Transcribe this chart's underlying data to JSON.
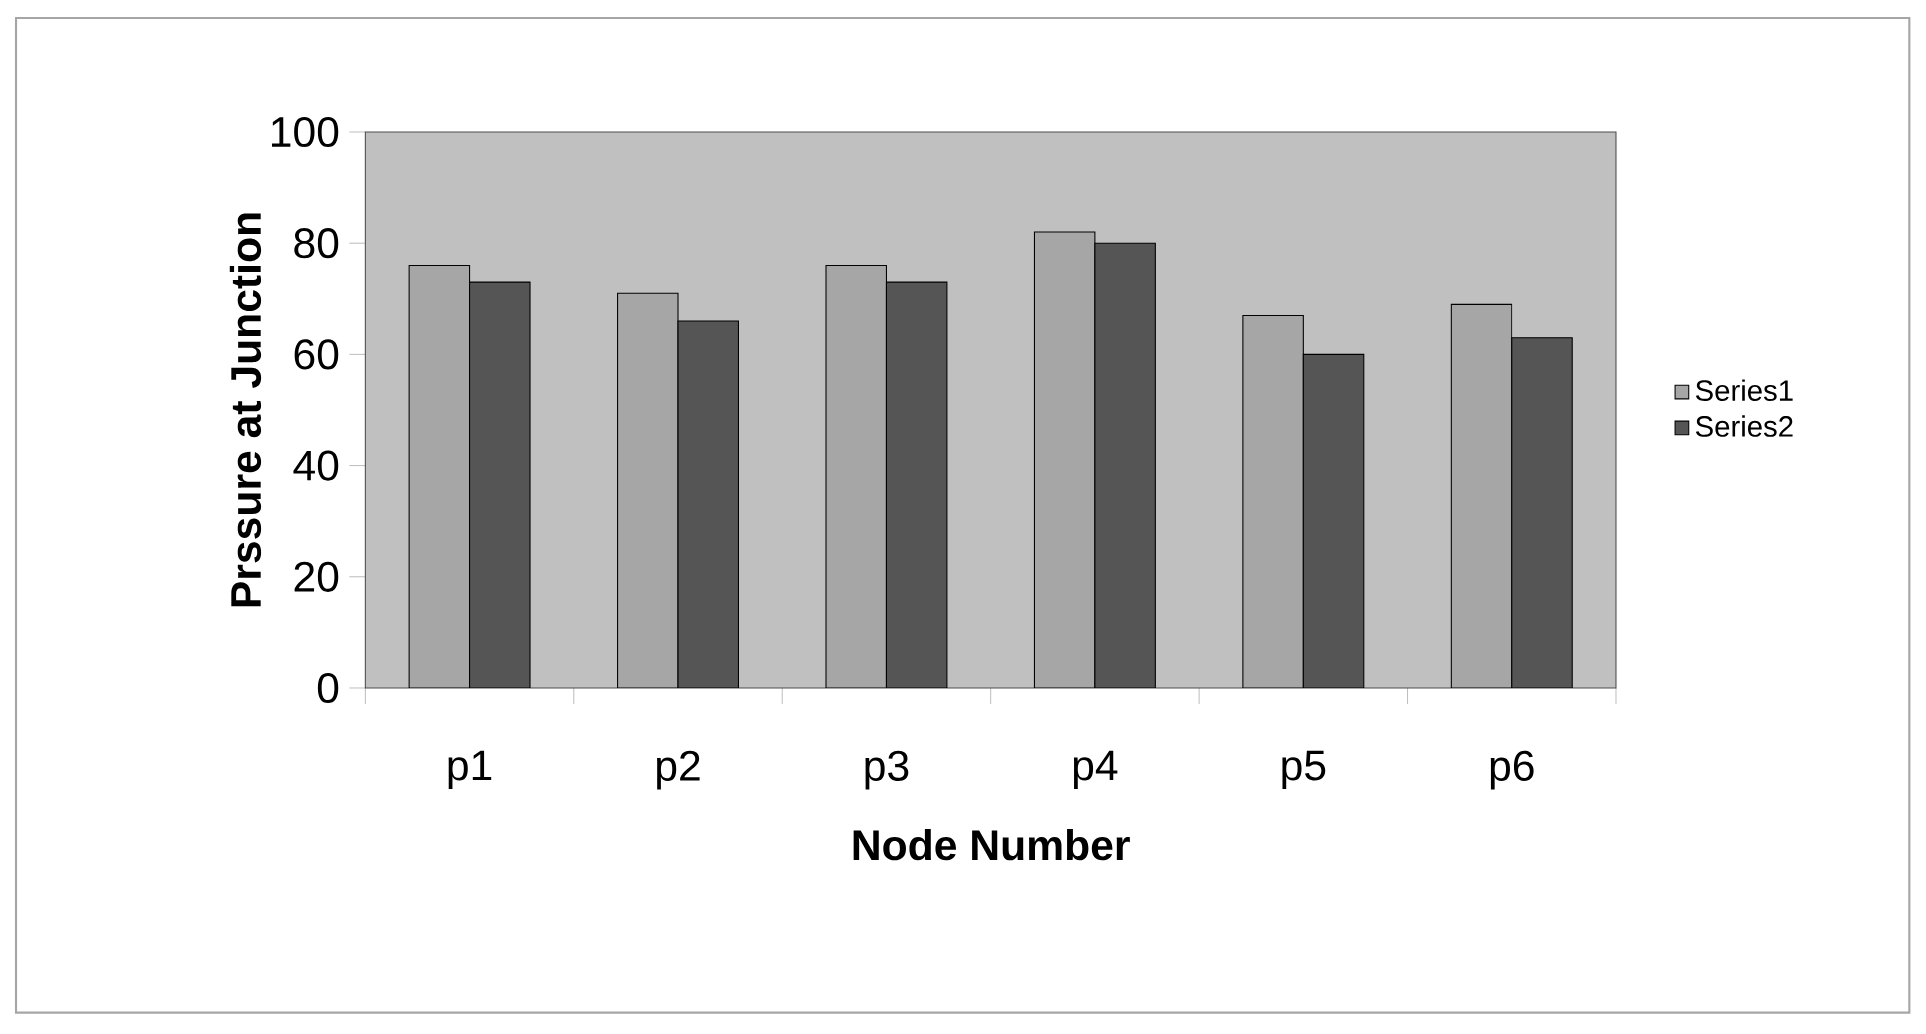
{
  "chart_data": {
    "type": "bar",
    "xlabel": "Node Number",
    "ylabel": "Prssure at Junction",
    "categories": [
      "p1",
      "p2",
      "p3",
      "p4",
      "p5",
      "p6"
    ],
    "series": [
      {
        "name": "Series1",
        "color": "#a6a6a6",
        "values": [
          76,
          71,
          76,
          82,
          67,
          69
        ]
      },
      {
        "name": "Series2",
        "color": "#555555",
        "values": [
          73,
          66,
          73,
          80,
          60,
          63
        ]
      }
    ],
    "ylim": [
      0,
      100
    ],
    "yticks": [
      0,
      20,
      40,
      60,
      80,
      100
    ],
    "legend": "right"
  }
}
